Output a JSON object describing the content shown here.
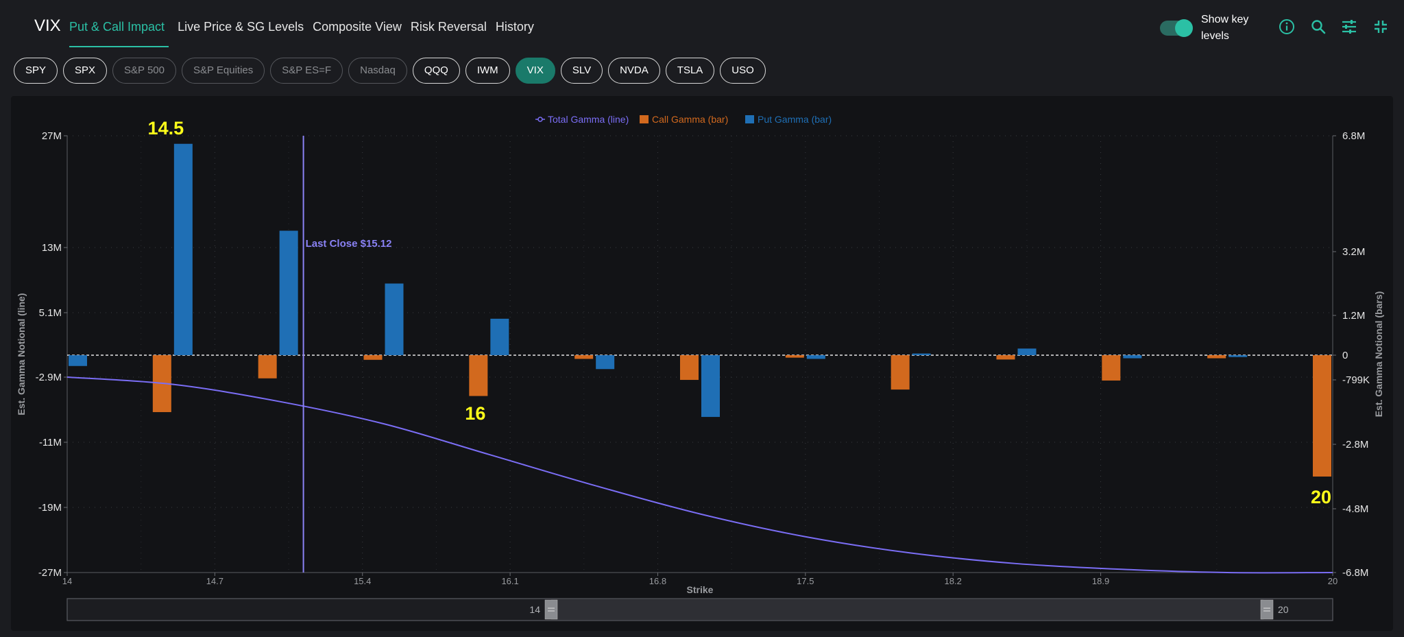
{
  "app": {
    "symbol": "VIX",
    "tabs": [
      "Put & Call Impact",
      "Live Price & SG Levels",
      "Composite View",
      "Risk Reversal",
      "History"
    ],
    "active_tab": 0,
    "toggle_label": "Show key levels",
    "toggle_on": true,
    "icons": [
      "info-icon",
      "search-icon",
      "sliders-icon",
      "collapse-icon"
    ],
    "accent_color": "#2bc0a5"
  },
  "tickers": [
    {
      "label": "SPY",
      "state": "normal"
    },
    {
      "label": "SPX",
      "state": "normal"
    },
    {
      "label": "S&P 500",
      "state": "disabled"
    },
    {
      "label": "S&P Equities",
      "state": "disabled"
    },
    {
      "label": "S&P ES=F",
      "state": "disabled"
    },
    {
      "label": "Nasdaq",
      "state": "disabled"
    },
    {
      "label": "QQQ",
      "state": "normal"
    },
    {
      "label": "IWM",
      "state": "normal"
    },
    {
      "label": "VIX",
      "state": "active"
    },
    {
      "label": "SLV",
      "state": "normal"
    },
    {
      "label": "NVDA",
      "state": "normal"
    },
    {
      "label": "TSLA",
      "state": "normal"
    },
    {
      "label": "USO",
      "state": "normal"
    }
  ],
  "chart_data": {
    "type": "bar",
    "legend": [
      {
        "label": "Total Gamma (line)",
        "color": "#7b6ef6",
        "kind": "line"
      },
      {
        "label": "Call Gamma (bar)",
        "color": "#d2691e",
        "kind": "bar"
      },
      {
        "label": "Put Gamma (bar)",
        "color": "#1f6fb5",
        "kind": "bar"
      }
    ],
    "legend_position": "top-center",
    "xlabel": "Strike",
    "ylabel_left": "Est. Gamma Notional (line)",
    "ylabel_right": "Est. Gamma Notional (bars)",
    "x_ticks": [
      "14",
      "14.7",
      "15.4",
      "16.1",
      "16.8",
      "17.5",
      "18.2",
      "18.9",
      "20"
    ],
    "x_tick_values": [
      14,
      14.7,
      15.4,
      16.1,
      16.8,
      17.5,
      18.2,
      18.9,
      20
    ],
    "xlim": [
      14,
      20
    ],
    "left_ticks": [
      "27M",
      "13M",
      "5.1M",
      "-2.9M",
      "-11M",
      "-19M",
      "-27M"
    ],
    "left_tick_values": [
      27,
      13,
      5.1,
      -2.9,
      -11,
      -19,
      -27
    ],
    "right_ticks": [
      "6.8M",
      "3.2M",
      "1.2M",
      "0",
      "-799K",
      "-2.8M",
      "-4.8M",
      "-6.8M"
    ],
    "right_tick_values": [
      6.8,
      3.2,
      1.2,
      0,
      -0.799,
      -2.8,
      -4.8,
      -6.8
    ],
    "grid": true,
    "strikes": [
      14,
      14.5,
      15,
      15.5,
      16,
      16.5,
      17,
      17.5,
      18,
      18.5,
      19,
      19.5,
      20
    ],
    "call_gamma_M": [
      0,
      -1.8,
      -0.75,
      -0.15,
      -1.3,
      -0.12,
      -0.8,
      -0.08,
      -1.1,
      -0.14,
      -0.82,
      -0.1,
      -3.8
    ],
    "put_gamma_M": [
      -0.35,
      6.55,
      3.85,
      2.2,
      1.1,
      -0.45,
      -1.95,
      -0.12,
      0.05,
      0.2,
      -0.1,
      -0.06,
      0
    ],
    "total_gamma_line": {
      "x": [
        14,
        14.5,
        15,
        15.5,
        16,
        16.5,
        17,
        17.5,
        18,
        18.5,
        19,
        19.5,
        20
      ],
      "y": [
        -2.9,
        -3.8,
        -5.9,
        -8.7,
        -12.5,
        -16.3,
        -19.8,
        -22.6,
        -24.6,
        -25.9,
        -26.6,
        -27.0,
        -27.2
      ]
    },
    "last_close": {
      "label": "Last Close $15.12",
      "value": 15.12
    },
    "key_levels": [
      {
        "label": "14.5",
        "strike": 14.5
      },
      {
        "label": "16",
        "strike": 16
      },
      {
        "label": "20",
        "strike": 20
      }
    ],
    "key_level_color": "#ffff1a",
    "range_slider": {
      "min_label": "14",
      "max_label": "20",
      "min": 14,
      "max": 20
    }
  }
}
